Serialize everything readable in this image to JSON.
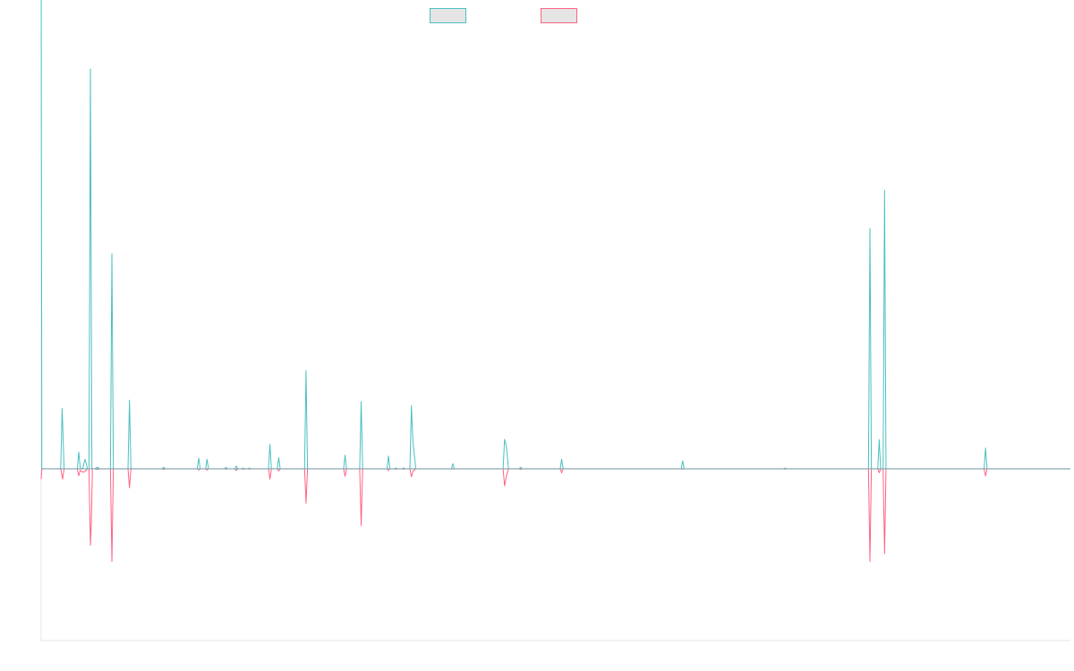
{
  "chart_data": {
    "type": "line",
    "title": "",
    "xlabel": "",
    "ylabel": "",
    "grid": false,
    "legend_position": "top",
    "ylim": [
      -100,
      100
    ],
    "series": [
      {
        "label": "",
        "color": "#4bc0c0",
        "fill": "#e5e5e5",
        "points": [
          [
            0,
            128.3
          ],
          [
            0.7,
            0
          ],
          [
            20,
            0
          ],
          [
            21.5,
            15.1
          ],
          [
            23.5,
            0
          ],
          [
            37,
            0
          ],
          [
            38.5,
            4.2
          ],
          [
            40,
            0.2
          ],
          [
            42.5,
            0
          ],
          [
            45,
            2.4
          ],
          [
            47.5,
            0
          ],
          [
            49,
            0
          ],
          [
            50.5,
            100.2
          ],
          [
            52,
            0
          ],
          [
            55,
            0
          ],
          [
            57.5,
            0.4
          ],
          [
            60,
            0
          ],
          [
            71,
            0
          ],
          [
            72.5,
            53.9
          ],
          [
            74,
            0
          ],
          [
            89,
            0
          ],
          [
            90.5,
            17.2
          ],
          [
            92,
            0
          ],
          [
            124,
            0
          ],
          [
            125.5,
            0.4
          ],
          [
            127,
            0
          ],
          [
            160,
            0
          ],
          [
            161.5,
            2.7
          ],
          [
            163,
            0
          ],
          [
            168.5,
            0
          ],
          [
            170,
            2.4
          ],
          [
            171.5,
            0
          ],
          [
            188,
            0
          ],
          [
            189.5,
            0.4
          ],
          [
            191,
            0
          ],
          [
            198.5,
            0
          ],
          [
            200,
            0.7
          ],
          [
            201.5,
            0
          ],
          [
            205.5,
            0
          ],
          [
            207,
            0.2
          ],
          [
            208.5,
            0
          ],
          [
            212,
            0
          ],
          [
            213.5,
            0.2
          ],
          [
            215,
            0
          ],
          [
            233,
            0
          ],
          [
            234.5,
            6.1
          ],
          [
            236,
            0
          ],
          [
            242,
            0
          ],
          [
            243.5,
            2.8
          ],
          [
            245,
            0
          ],
          [
            270,
            0
          ],
          [
            271.5,
            24.6
          ],
          [
            273,
            0
          ],
          [
            310,
            0
          ],
          [
            311.5,
            3.4
          ],
          [
            313,
            0
          ],
          [
            326.5,
            0
          ],
          [
            328,
            16.8
          ],
          [
            329.5,
            0
          ],
          [
            354.5,
            0
          ],
          [
            356,
            3.2
          ],
          [
            357.5,
            0
          ],
          [
            362,
            0
          ],
          [
            363.5,
            0.2
          ],
          [
            365,
            0
          ],
          [
            370,
            0
          ],
          [
            371.5,
            0.2
          ],
          [
            373,
            0
          ],
          [
            378,
            0
          ],
          [
            379.5,
            15.8
          ],
          [
            381,
            7
          ],
          [
            384,
            0
          ],
          [
            420.5,
            0
          ],
          [
            422,
            1.3
          ],
          [
            423.5,
            0
          ],
          [
            473.5,
            0
          ],
          [
            475,
            7.4
          ],
          [
            477,
            5.5
          ],
          [
            479,
            0
          ],
          [
            490,
            0
          ],
          [
            491.5,
            0.4
          ],
          [
            493,
            0
          ],
          [
            532,
            0
          ],
          [
            533.5,
            2.4
          ],
          [
            535,
            0
          ],
          [
            656,
            0
          ],
          [
            657.5,
            2
          ],
          [
            659,
            0
          ],
          [
            761,
            0
          ],
          [
            762.5,
            0.2
          ],
          [
            764,
            0
          ],
          [
            848,
            0
          ],
          [
            849.5,
            60.2
          ],
          [
            851,
            0
          ],
          [
            857.5,
            0
          ],
          [
            859,
            7.3
          ],
          [
            860.5,
            0
          ],
          [
            863,
            0
          ],
          [
            864.5,
            69.8
          ],
          [
            866,
            0
          ],
          [
            966.5,
            0
          ],
          [
            968,
            5.2
          ],
          [
            969.5,
            0
          ],
          [
            1055,
            0
          ]
        ]
      },
      {
        "label": "",
        "color": "#ff6384",
        "fill": "#e5e5e5",
        "points": [
          [
            0,
            -6
          ],
          [
            0.7,
            0
          ],
          [
            20,
            0
          ],
          [
            22,
            -6
          ],
          [
            23.5,
            0
          ],
          [
            37,
            0
          ],
          [
            38.5,
            -4
          ],
          [
            40,
            -1
          ],
          [
            43,
            -2
          ],
          [
            45,
            -1.5
          ],
          [
            47.5,
            0
          ],
          [
            49,
            0
          ],
          [
            50.5,
            -44.5
          ],
          [
            51.5,
            -30
          ],
          [
            52.5,
            0
          ],
          [
            55,
            0
          ],
          [
            57.5,
            -0.4
          ],
          [
            60,
            0
          ],
          [
            71,
            0
          ],
          [
            72.5,
            -54
          ],
          [
            74,
            0
          ],
          [
            89,
            0
          ],
          [
            90.5,
            -11
          ],
          [
            92,
            0
          ],
          [
            124,
            0
          ],
          [
            125.5,
            -0.4
          ],
          [
            127,
            0
          ],
          [
            160,
            0
          ],
          [
            161.5,
            -0.7
          ],
          [
            163,
            0
          ],
          [
            168.5,
            0
          ],
          [
            170,
            -0.7
          ],
          [
            171.5,
            0
          ],
          [
            188,
            0
          ],
          [
            189.5,
            -0.2
          ],
          [
            191,
            0
          ],
          [
            198.5,
            0
          ],
          [
            200,
            -1
          ],
          [
            201.5,
            0
          ],
          [
            205.5,
            0
          ],
          [
            207,
            -0.2
          ],
          [
            208.5,
            0
          ],
          [
            212,
            0
          ],
          [
            213.5,
            -0.2
          ],
          [
            215,
            0
          ],
          [
            233,
            0
          ],
          [
            234.5,
            -6
          ],
          [
            236,
            0
          ],
          [
            242,
            0
          ],
          [
            243.5,
            -1.2
          ],
          [
            245,
            0
          ],
          [
            270,
            0
          ],
          [
            271.5,
            -20
          ],
          [
            273,
            0
          ],
          [
            310,
            0
          ],
          [
            311.5,
            -4.4
          ],
          [
            313,
            0
          ],
          [
            326.5,
            0
          ],
          [
            328,
            -33
          ],
          [
            329.5,
            0
          ],
          [
            354.5,
            0
          ],
          [
            356,
            -0.9
          ],
          [
            357.5,
            0
          ],
          [
            362,
            0
          ],
          [
            363.5,
            -0.2
          ],
          [
            365,
            0
          ],
          [
            370,
            0
          ],
          [
            371.5,
            -0.2
          ],
          [
            373,
            0
          ],
          [
            378,
            0
          ],
          [
            379.5,
            -4.6
          ],
          [
            381,
            -1.5
          ],
          [
            384,
            0
          ],
          [
            420.5,
            0
          ],
          [
            422,
            -0.2
          ],
          [
            423.5,
            0
          ],
          [
            473.5,
            0
          ],
          [
            475,
            -9.9
          ],
          [
            477,
            -4
          ],
          [
            479,
            0
          ],
          [
            490,
            0
          ],
          [
            491.5,
            -0.4
          ],
          [
            493,
            0
          ],
          [
            532,
            0
          ],
          [
            533.5,
            -2.4
          ],
          [
            535,
            0
          ],
          [
            656,
            0
          ],
          [
            657.5,
            -0.2
          ],
          [
            659,
            0
          ],
          [
            761,
            0
          ],
          [
            762.5,
            -0.2
          ],
          [
            764,
            0
          ],
          [
            848,
            0
          ],
          [
            849.5,
            -54
          ],
          [
            851,
            0
          ],
          [
            857.5,
            0
          ],
          [
            859,
            -2.3
          ],
          [
            860.5,
            0
          ],
          [
            863,
            0
          ],
          [
            864.5,
            -49.5
          ],
          [
            866,
            0
          ],
          [
            966.5,
            0
          ],
          [
            968,
            -4.2
          ],
          [
            969.5,
            0
          ],
          [
            1055,
            0
          ]
        ]
      }
    ],
    "xlim": [
      0,
      1055
    ]
  }
}
